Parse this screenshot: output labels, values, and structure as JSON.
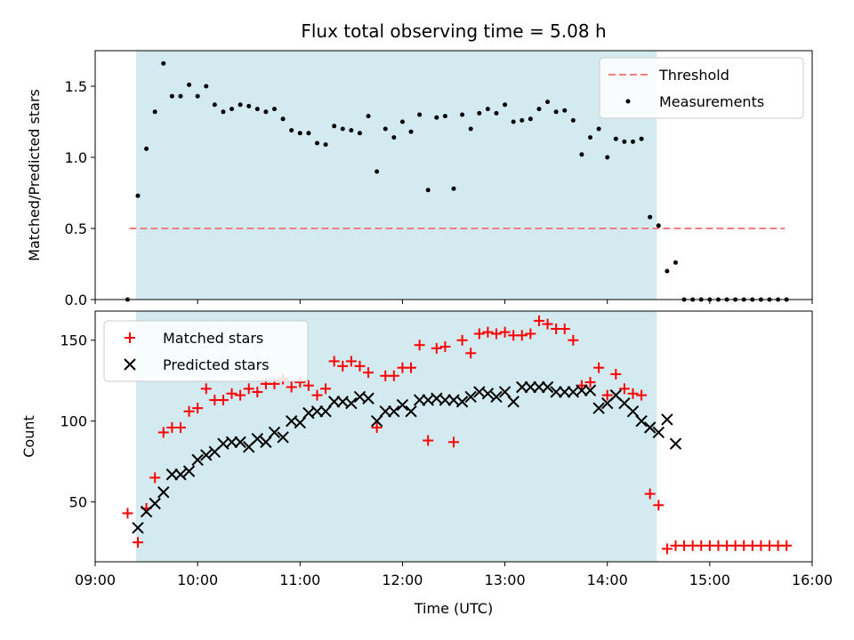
{
  "chart_data": [
    {
      "type": "scatter",
      "title": "Flux total observing time = 5.08 h",
      "xlabel": "",
      "ylabel": "Matched/Predicted stars",
      "xlim": [
        "09:00",
        "16:00"
      ],
      "ylim": [
        0,
        1.75
      ],
      "yticks": [
        0.0,
        0.5,
        1.0,
        1.5
      ],
      "yticklabels": [
        "0.0",
        "0.5",
        "1.0",
        "1.5"
      ],
      "shaded_region": {
        "start": "09:24",
        "end": "14:29",
        "color": "#d3eaf0"
      },
      "threshold": {
        "name": "Threshold",
        "y": 0.5,
        "x_start": "09:20",
        "x_end": "15:44",
        "color": "#f08080",
        "style": "dashed"
      },
      "legend": {
        "position": "top-right",
        "entries": [
          "Threshold",
          "Measurements"
        ]
      },
      "series": [
        {
          "name": "Measurements",
          "marker": "dot",
          "color": "#000000",
          "points": [
            [
              "09:19",
              0.0
            ],
            [
              "09:25",
              0.73
            ],
            [
              "09:30",
              1.06
            ],
            [
              "09:35",
              1.32
            ],
            [
              "09:40",
              1.66
            ],
            [
              "09:45",
              1.43
            ],
            [
              "09:50",
              1.43
            ],
            [
              "09:55",
              1.51
            ],
            [
              "10:00",
              1.43
            ],
            [
              "10:05",
              1.5
            ],
            [
              "10:10",
              1.37
            ],
            [
              "10:15",
              1.32
            ],
            [
              "10:20",
              1.34
            ],
            [
              "10:25",
              1.37
            ],
            [
              "10:30",
              1.36
            ],
            [
              "10:35",
              1.34
            ],
            [
              "10:40",
              1.32
            ],
            [
              "10:45",
              1.34
            ],
            [
              "10:50",
              1.27
            ],
            [
              "10:55",
              1.19
            ],
            [
              "11:00",
              1.17
            ],
            [
              "11:05",
              1.17
            ],
            [
              "11:10",
              1.1
            ],
            [
              "11:15",
              1.09
            ],
            [
              "11:20",
              1.22
            ],
            [
              "11:25",
              1.2
            ],
            [
              "11:30",
              1.19
            ],
            [
              "11:35",
              1.17
            ],
            [
              "11:40",
              1.29
            ],
            [
              "11:45",
              0.9
            ],
            [
              "11:50",
              1.2
            ],
            [
              "11:55",
              1.14
            ],
            [
              "12:00",
              1.25
            ],
            [
              "12:05",
              1.18
            ],
            [
              "12:10",
              1.3
            ],
            [
              "12:15",
              0.77
            ],
            [
              "12:20",
              1.28
            ],
            [
              "12:25",
              1.29
            ],
            [
              "12:30",
              0.78
            ],
            [
              "12:35",
              1.3
            ],
            [
              "12:40",
              1.2
            ],
            [
              "12:45",
              1.31
            ],
            [
              "12:50",
              1.34
            ],
            [
              "12:55",
              1.31
            ],
            [
              "13:00",
              1.37
            ],
            [
              "13:05",
              1.25
            ],
            [
              "13:10",
              1.26
            ],
            [
              "13:15",
              1.27
            ],
            [
              "13:20",
              1.34
            ],
            [
              "13:25",
              1.39
            ],
            [
              "13:30",
              1.32
            ],
            [
              "13:35",
              1.33
            ],
            [
              "13:40",
              1.26
            ],
            [
              "13:45",
              1.02
            ],
            [
              "13:50",
              1.14
            ],
            [
              "13:55",
              1.2
            ],
            [
              "14:00",
              1.0
            ],
            [
              "14:05",
              1.13
            ],
            [
              "14:10",
              1.11
            ],
            [
              "14:15",
              1.11
            ],
            [
              "14:20",
              1.13
            ],
            [
              "14:25",
              0.58
            ],
            [
              "14:30",
              0.52
            ],
            [
              "14:35",
              0.2
            ],
            [
              "14:40",
              0.26
            ],
            [
              "14:45",
              0.0
            ],
            [
              "14:50",
              0.0
            ],
            [
              "14:55",
              0.0
            ],
            [
              "15:00",
              0.0
            ],
            [
              "15:05",
              0.0
            ],
            [
              "15:10",
              0.0
            ],
            [
              "15:15",
              0.0
            ],
            [
              "15:20",
              0.0
            ],
            [
              "15:25",
              0.0
            ],
            [
              "15:30",
              0.0
            ],
            [
              "15:35",
              0.0
            ],
            [
              "15:40",
              0.0
            ],
            [
              "15:45",
              0.0
            ]
          ]
        }
      ]
    },
    {
      "type": "scatter",
      "title": "",
      "xlabel": "Time (UTC)",
      "ylabel": "Count",
      "xlim": [
        "09:00",
        "16:00"
      ],
      "ylim": [
        13,
        168
      ],
      "xticks": [
        "09:00",
        "10:00",
        "11:00",
        "12:00",
        "13:00",
        "14:00",
        "15:00",
        "16:00"
      ],
      "yticks": [
        50,
        100,
        150
      ],
      "yticklabels": [
        "50",
        "100",
        "150"
      ],
      "shaded_region": {
        "start": "09:24",
        "end": "14:29",
        "color": "#d3eaf0"
      },
      "legend": {
        "position": "top-left",
        "entries": [
          "Matched stars",
          "Predicted stars"
        ]
      },
      "series": [
        {
          "name": "Matched stars",
          "marker": "plus",
          "color": "#ff0000",
          "points": [
            [
              "09:19",
              43
            ],
            [
              "09:25",
              25
            ],
            [
              "09:30",
              46
            ],
            [
              "09:35",
              65
            ],
            [
              "09:40",
              93
            ],
            [
              "09:45",
              96
            ],
            [
              "09:50",
              96
            ],
            [
              "09:55",
              106
            ],
            [
              "10:00",
              108
            ],
            [
              "10:05",
              120
            ],
            [
              "10:10",
              113
            ],
            [
              "10:15",
              113
            ],
            [
              "10:20",
              117
            ],
            [
              "10:25",
              116
            ],
            [
              "10:30",
              120
            ],
            [
              "10:35",
              118
            ],
            [
              "10:40",
              123
            ],
            [
              "10:45",
              123
            ],
            [
              "10:50",
              126
            ],
            [
              "10:55",
              121
            ],
            [
              "11:00",
              124
            ],
            [
              "11:05",
              122
            ],
            [
              "11:10",
              116
            ],
            [
              "11:15",
              120
            ],
            [
              "11:20",
              137
            ],
            [
              "11:25",
              134
            ],
            [
              "11:30",
              137
            ],
            [
              "11:35",
              134
            ],
            [
              "11:40",
              130
            ],
            [
              "11:45",
              96
            ],
            [
              "11:50",
              128
            ],
            [
              "11:55",
              128
            ],
            [
              "12:00",
              133
            ],
            [
              "12:05",
              133
            ],
            [
              "12:10",
              147
            ],
            [
              "12:15",
              88
            ],
            [
              "12:20",
              145
            ],
            [
              "12:25",
              146
            ],
            [
              "12:30",
              87
            ],
            [
              "12:35",
              150
            ],
            [
              "12:40",
              142
            ],
            [
              "12:45",
              154
            ],
            [
              "12:50",
              155
            ],
            [
              "12:55",
              154
            ],
            [
              "13:00",
              155
            ],
            [
              "13:05",
              153
            ],
            [
              "13:10",
              153
            ],
            [
              "13:15",
              154
            ],
            [
              "13:20",
              162
            ],
            [
              "13:25",
              160
            ],
            [
              "13:30",
              157
            ],
            [
              "13:35",
              157
            ],
            [
              "13:40",
              150
            ],
            [
              "13:45",
              122
            ],
            [
              "13:50",
              124
            ],
            [
              "13:55",
              133
            ],
            [
              "14:00",
              116
            ],
            [
              "14:05",
              129
            ],
            [
              "14:10",
              120
            ],
            [
              "14:15",
              117
            ],
            [
              "14:20",
              116
            ],
            [
              "14:25",
              55
            ],
            [
              "14:30",
              48
            ],
            [
              "14:35",
              21
            ],
            [
              "14:40",
              23
            ],
            [
              "14:45",
              23
            ],
            [
              "14:50",
              23
            ],
            [
              "14:55",
              23
            ],
            [
              "15:00",
              23
            ],
            [
              "15:05",
              23
            ],
            [
              "15:10",
              23
            ],
            [
              "15:15",
              23
            ],
            [
              "15:20",
              23
            ],
            [
              "15:25",
              23
            ],
            [
              "15:30",
              23
            ],
            [
              "15:35",
              23
            ],
            [
              "15:40",
              23
            ],
            [
              "15:45",
              23
            ]
          ]
        },
        {
          "name": "Predicted stars",
          "marker": "x",
          "color": "#000000",
          "points": [
            [
              "09:25",
              34
            ],
            [
              "09:30",
              44
            ],
            [
              "09:35",
              49
            ],
            [
              "09:40",
              56
            ],
            [
              "09:45",
              67
            ],
            [
              "09:50",
              67
            ],
            [
              "09:55",
              69
            ],
            [
              "10:00",
              76
            ],
            [
              "10:05",
              79
            ],
            [
              "10:10",
              81
            ],
            [
              "10:15",
              86
            ],
            [
              "10:20",
              87
            ],
            [
              "10:25",
              87
            ],
            [
              "10:30",
              84
            ],
            [
              "10:35",
              89
            ],
            [
              "10:40",
              87
            ],
            [
              "10:45",
              93
            ],
            [
              "10:50",
              90
            ],
            [
              "10:55",
              100
            ],
            [
              "11:00",
              99
            ],
            [
              "11:05",
              105
            ],
            [
              "11:10",
              106
            ],
            [
              "11:15",
              106
            ],
            [
              "11:20",
              112
            ],
            [
              "11:25",
              112
            ],
            [
              "11:30",
              111
            ],
            [
              "11:35",
              115
            ],
            [
              "11:40",
              114
            ],
            [
              "11:45",
              100
            ],
            [
              "11:50",
              106
            ],
            [
              "11:55",
              106
            ],
            [
              "12:00",
              110
            ],
            [
              "12:05",
              106
            ],
            [
              "12:10",
              113
            ],
            [
              "12:15",
              113
            ],
            [
              "12:20",
              114
            ],
            [
              "12:25",
              113
            ],
            [
              "12:30",
              113
            ],
            [
              "12:35",
              112
            ],
            [
              "12:40",
              115
            ],
            [
              "12:45",
              118
            ],
            [
              "12:50",
              117
            ],
            [
              "12:55",
              115
            ],
            [
              "13:00",
              118
            ],
            [
              "13:05",
              112
            ],
            [
              "13:10",
              121
            ],
            [
              "13:15",
              121
            ],
            [
              "13:20",
              121
            ],
            [
              "13:25",
              121
            ],
            [
              "13:30",
              118
            ],
            [
              "13:35",
              118
            ],
            [
              "13:40",
              118
            ],
            [
              "13:45",
              119
            ],
            [
              "13:50",
              119
            ],
            [
              "13:55",
              108
            ],
            [
              "14:00",
              111
            ],
            [
              "14:05",
              116
            ],
            [
              "14:10",
              111
            ],
            [
              "14:15",
              106
            ],
            [
              "14:20",
              100
            ],
            [
              "14:25",
              96
            ],
            [
              "14:30",
              93
            ],
            [
              "14:35",
              101
            ],
            [
              "14:40",
              86
            ]
          ]
        }
      ]
    }
  ]
}
